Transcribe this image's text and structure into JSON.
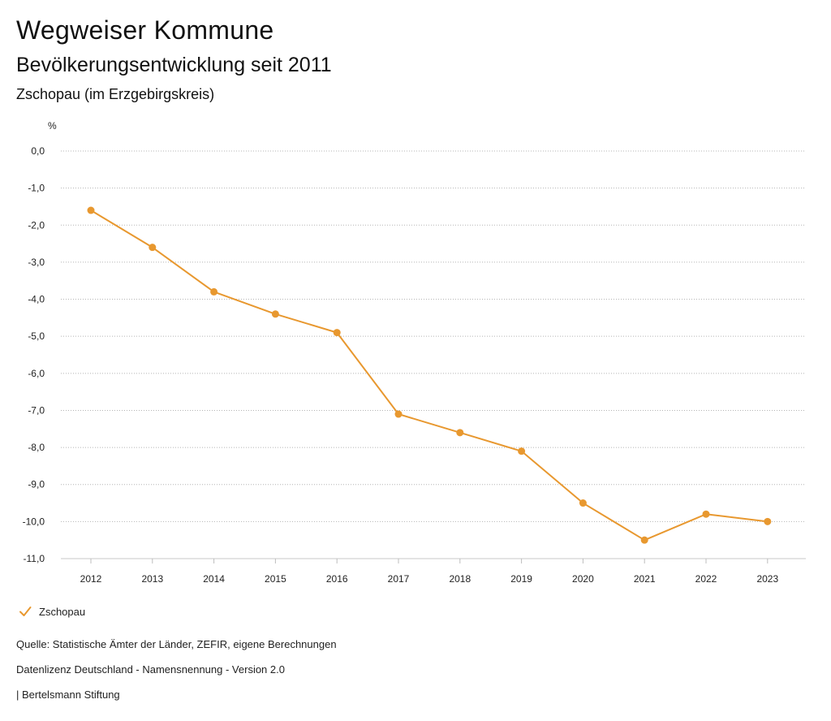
{
  "header": {
    "title": "Wegweiser Kommune",
    "subtitle": "Bevölkerungsentwicklung seit 2011",
    "region": "Zschopau (im Erzgebirgskreis)"
  },
  "chart_data": {
    "type": "line",
    "ylabel": "%",
    "x": [
      "2012",
      "2013",
      "2014",
      "2015",
      "2016",
      "2017",
      "2018",
      "2019",
      "2020",
      "2021",
      "2022",
      "2023"
    ],
    "yticks": [
      "0,0",
      "-1,0",
      "-2,0",
      "-3,0",
      "-4,0",
      "-5,0",
      "-6,0",
      "-7,0",
      "-8,0",
      "-9,0",
      "-10,0",
      "-11,0"
    ],
    "ylim": [
      -11,
      0
    ],
    "grid": true,
    "series": [
      {
        "name": "Zschopau",
        "color": "#E8982F",
        "values": [
          -1.6,
          -2.6,
          -3.8,
          -4.4,
          -4.9,
          -7.1,
          -7.6,
          -8.1,
          -9.5,
          -10.5,
          -9.8,
          -10.0
        ]
      }
    ],
    "legend_position": "bottom-left"
  },
  "legend": {
    "label": "Zschopau",
    "icon": "check-icon"
  },
  "footer": {
    "source": "Quelle: Statistische Ämter der Länder, ZEFIR, eigene Berechnungen",
    "license": "Datenlizenz Deutschland - Namensnennung - Version 2.0",
    "publisher": "| Bertelsmann Stiftung"
  }
}
